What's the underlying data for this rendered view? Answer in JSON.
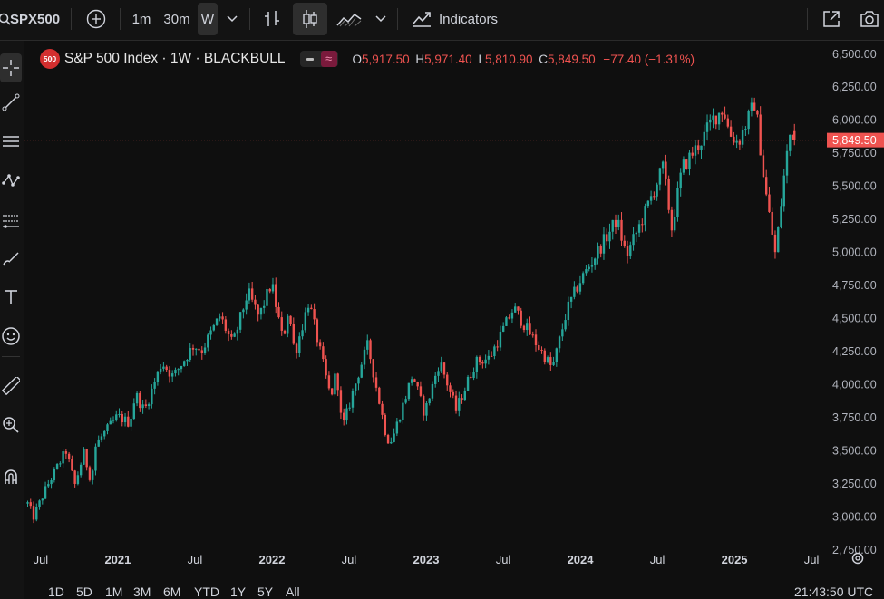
{
  "toolbar": {
    "symbol": "SPX500",
    "intervals": [
      "1m",
      "30m",
      "W"
    ],
    "indicators_label": "Indicators"
  },
  "legend": {
    "badge": "500",
    "title": "S&P 500 Index · 1W · BLACKBULL",
    "o_label": "O",
    "o_value": "5,917.50",
    "h_label": "H",
    "h_value": "5,971.40",
    "l_label": "L",
    "l_value": "5,810.90",
    "c_label": "C",
    "c_value": "5,849.50",
    "change": "−77.40 (−1.31%)"
  },
  "price_tag": "5,849.50",
  "bottom": {
    "ranges": [
      "1D",
      "5D",
      "1M",
      "3M",
      "6M",
      "YTD",
      "1Y",
      "5Y",
      "All"
    ],
    "clock": "21:43:50 UTC"
  },
  "colors": {
    "up": "#26a69a",
    "down": "#ef5350",
    "background": "#0f0f0f",
    "price_line": "#ef5350"
  },
  "chart_data": {
    "type": "candlestick",
    "interval": "1W",
    "y_ticks": [
      "6,500.00",
      "6,250.00",
      "6,000.00",
      "5,750.00",
      "5,500.00",
      "5,250.00",
      "5,000.00",
      "4,750.00",
      "4,500.00",
      "4,250.00",
      "4,000.00",
      "3,750.00",
      "3,500.00",
      "3,250.00",
      "3,000.00",
      "2,750.00"
    ],
    "ylim": [
      2625,
      6560
    ],
    "x_ticks": [
      "Jul",
      "2021",
      "Jul",
      "2022",
      "Jul",
      "2023",
      "Jul",
      "2024",
      "Jul",
      "2025",
      "Jul"
    ],
    "x_tick_years": [
      2020.5,
      2021,
      2021.5,
      2022,
      2022.5,
      2023,
      2023.5,
      2024,
      2024.5,
      2025,
      2025.5
    ],
    "xlim": [
      2020.43,
      2025.57
    ],
    "last_price": 5849.5,
    "close_path": [
      [
        "2020-06-01",
        3100
      ],
      [
        "2020-06-15",
        3000
      ],
      [
        "2020-07-15",
        3220
      ],
      [
        "2020-08-31",
        3500
      ],
      [
        "2020-09-21",
        3240
      ],
      [
        "2020-10-12",
        3480
      ],
      [
        "2020-10-30",
        3270
      ],
      [
        "2020-11-10",
        3550
      ],
      [
        "2020-12-31",
        3760
      ],
      [
        "2021-01-29",
        3710
      ],
      [
        "2021-02-12",
        3930
      ],
      [
        "2021-03-05",
        3800
      ],
      [
        "2021-04-15",
        4170
      ],
      [
        "2021-05-12",
        4060
      ],
      [
        "2021-06-30",
        4300
      ],
      [
        "2021-07-19",
        4260
      ],
      [
        "2021-08-31",
        4520
      ],
      [
        "2021-09-30",
        4300
      ],
      [
        "2021-11-05",
        4700
      ],
      [
        "2021-12-01",
        4510
      ],
      [
        "2021-12-31",
        4770
      ],
      [
        "2022-01-27",
        4330
      ],
      [
        "2022-02-09",
        4580
      ],
      [
        "2022-02-24",
        4230
      ],
      [
        "2022-03-29",
        4630
      ],
      [
        "2022-05-20",
        3900
      ],
      [
        "2022-06-03",
        4110
      ],
      [
        "2022-06-16",
        3660
      ],
      [
        "2022-07-29",
        4130
      ],
      [
        "2022-08-16",
        4300
      ],
      [
        "2022-09-30",
        3590
      ],
      [
        "2022-10-12",
        3580
      ],
      [
        "2022-11-30",
        4080
      ],
      [
        "2022-12-28",
        3780
      ],
      [
        "2023-02-02",
        4180
      ],
      [
        "2023-03-13",
        3810
      ],
      [
        "2023-04-28",
        4170
      ],
      [
        "2023-05-31",
        4200
      ],
      [
        "2023-07-27",
        4580
      ],
      [
        "2023-10-27",
        4120
      ],
      [
        "2023-11-30",
        4560
      ],
      [
        "2023-12-29",
        4770
      ],
      [
        "2024-03-28",
        5250
      ],
      [
        "2024-04-19",
        4970
      ],
      [
        "2024-05-31",
        5280
      ],
      [
        "2024-07-16",
        5650
      ],
      [
        "2024-08-05",
        5180
      ],
      [
        "2024-08-30",
        5640
      ],
      [
        "2024-10-18",
        5860
      ],
      [
        "2024-11-08",
        6000
      ],
      [
        "2024-12-06",
        6090
      ],
      [
        "2024-12-20",
        5900
      ],
      [
        "2025-01-10",
        5830
      ],
      [
        "2025-02-19",
        6140
      ],
      [
        "2025-03-13",
        5520
      ],
      [
        "2025-04-08",
        4980
      ],
      [
        "2025-05-02",
        5680
      ],
      [
        "2025-05-16",
        5960
      ],
      [
        "2025-05-23",
        5850
      ]
    ],
    "last_candle": {
      "open": 5917.5,
      "high": 5971.4,
      "low": 5810.9,
      "close": 5849.5
    }
  }
}
